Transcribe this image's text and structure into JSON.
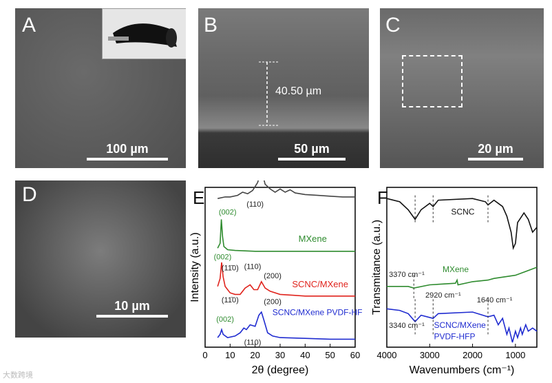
{
  "panels": {
    "A": {
      "label": "A",
      "scale": "100 µm"
    },
    "B": {
      "label": "B",
      "scale": "50 µm",
      "thickness": "40.50 µm"
    },
    "C": {
      "label": "C",
      "scale": "20 µm"
    },
    "D": {
      "label": "D",
      "scale": "10 µm"
    },
    "E": {
      "label": "E"
    },
    "F": {
      "label": "F"
    }
  },
  "footer": "大数跨境",
  "chart_data": [
    {
      "type": "line",
      "xlabel": "2θ (degree)",
      "ylabel": "Intensity (a.u.)",
      "xlim": [
        0,
        60
      ],
      "xticks": [
        0,
        10,
        20,
        30,
        40,
        50,
        60
      ],
      "series": [
        {
          "name": "SCNC",
          "color": "#444444",
          "points": [
            [
              5,
              0.93
            ],
            [
              8,
              0.94
            ],
            [
              10,
              0.94
            ],
            [
              13,
              0.95
            ],
            [
              15,
              0.97
            ],
            [
              17,
              0.96
            ],
            [
              19,
              0.98
            ],
            [
              21,
              1.03
            ],
            [
              22.5,
              1.11
            ],
            [
              24,
              1.02
            ],
            [
              26,
              0.99
            ],
            [
              28,
              0.97
            ],
            [
              30,
              0.99
            ],
            [
              32,
              0.97
            ],
            [
              34,
              0.985
            ],
            [
              36,
              0.965
            ],
            [
              40,
              0.955
            ],
            [
              45,
              0.95
            ],
            [
              50,
              0.945
            ],
            [
              55,
              0.94
            ],
            [
              60,
              0.94
            ]
          ]
        },
        {
          "name": "MXene",
          "color": "#2e8b2e",
          "points": [
            [
              5,
              0.62
            ],
            [
              6,
              0.65
            ],
            [
              6.5,
              0.8
            ],
            [
              7,
              0.69
            ],
            [
              7.5,
              0.63
            ],
            [
              9,
              0.61
            ],
            [
              12,
              0.605
            ],
            [
              20,
              0.6
            ],
            [
              30,
              0.6
            ],
            [
              40,
              0.6
            ],
            [
              50,
              0.6
            ],
            [
              60,
              0.6
            ]
          ]
        },
        {
          "name": "SCNC/MXene",
          "color": "#e0231c",
          "points": [
            [
              5,
              0.38
            ],
            [
              6,
              0.43
            ],
            [
              6.6,
              0.53
            ],
            [
              7.2,
              0.44
            ],
            [
              8,
              0.38
            ],
            [
              10,
              0.34
            ],
            [
              12,
              0.33
            ],
            [
              14,
              0.33
            ],
            [
              16,
              0.37
            ],
            [
              18,
              0.39
            ],
            [
              19.5,
              0.36
            ],
            [
              21,
              0.36
            ],
            [
              22.5,
              0.41
            ],
            [
              24,
              0.37
            ],
            [
              26,
              0.35
            ],
            [
              30,
              0.33
            ],
            [
              35,
              0.325
            ],
            [
              40,
              0.32
            ],
            [
              50,
              0.32
            ],
            [
              60,
              0.32
            ]
          ]
        },
        {
          "name": "SCNC/MXene PVDF-HFP",
          "color": "#1f2bd0",
          "points": [
            [
              5,
              0.06
            ],
            [
              6,
              0.08
            ],
            [
              6.6,
              0.11
            ],
            [
              7.2,
              0.08
            ],
            [
              9,
              0.06
            ],
            [
              12,
              0.07
            ],
            [
              14,
              0.09
            ],
            [
              15.5,
              0.12
            ],
            [
              16.5,
              0.11
            ],
            [
              18,
              0.14
            ],
            [
              20,
              0.13
            ],
            [
              21.5,
              0.2
            ],
            [
              22.5,
              0.22
            ],
            [
              23.5,
              0.17
            ],
            [
              25,
              0.09
            ],
            [
              27,
              0.07
            ],
            [
              30,
              0.06
            ],
            [
              40,
              0.055
            ],
            [
              50,
              0.05
            ],
            [
              60,
              0.05
            ]
          ]
        }
      ],
      "labels": {
        "l110b": "(11̄0)",
        "l200": "(200)",
        "l110": "(110)",
        "l002": "(002)"
      }
    },
    {
      "type": "line",
      "xlabel": "Wavenumbers (cm⁻¹)",
      "ylabel": "Transmitance (a.u.)",
      "xlim": [
        4000,
        500
      ],
      "xticks": [
        4000,
        3000,
        2000,
        1000
      ],
      "series": [
        {
          "name": "SCNC",
          "color": "#111111",
          "points": [
            [
              4000,
              0.93
            ],
            [
              3700,
              0.91
            ],
            [
              3500,
              0.86
            ],
            [
              3340,
              0.8
            ],
            [
              3200,
              0.86
            ],
            [
              3000,
              0.9
            ],
            [
              2920,
              0.88
            ],
            [
              2800,
              0.92
            ],
            [
              2000,
              0.93
            ],
            [
              1700,
              0.91
            ],
            [
              1640,
              0.89
            ],
            [
              1500,
              0.92
            ],
            [
              1400,
              0.9
            ],
            [
              1300,
              0.88
            ],
            [
              1200,
              0.82
            ],
            [
              1100,
              0.72
            ],
            [
              1050,
              0.62
            ],
            [
              1000,
              0.65
            ],
            [
              950,
              0.78
            ],
            [
              900,
              0.8
            ],
            [
              800,
              0.84
            ],
            [
              700,
              0.8
            ],
            [
              600,
              0.72
            ],
            [
              500,
              0.75
            ]
          ]
        },
        {
          "name": "MXene",
          "color": "#2e8b2e",
          "points": [
            [
              4000,
              0.38
            ],
            [
              3500,
              0.38
            ],
            [
              3370,
              0.37
            ],
            [
              3000,
              0.39
            ],
            [
              2400,
              0.4
            ],
            [
              2360,
              0.42
            ],
            [
              2340,
              0.39
            ],
            [
              2000,
              0.41
            ],
            [
              1640,
              0.42
            ],
            [
              1500,
              0.43
            ],
            [
              1000,
              0.45
            ],
            [
              800,
              0.47
            ],
            [
              500,
              0.5
            ]
          ]
        },
        {
          "name": "SCNC/MXene PVDF-HFP",
          "color": "#1f2bd0",
          "points": [
            [
              4000,
              0.24
            ],
            [
              3700,
              0.23
            ],
            [
              3500,
              0.21
            ],
            [
              3340,
              0.16
            ],
            [
              3200,
              0.2
            ],
            [
              2920,
              0.18
            ],
            [
              2800,
              0.21
            ],
            [
              2000,
              0.22
            ],
            [
              1640,
              0.19
            ],
            [
              1500,
              0.2
            ],
            [
              1400,
              0.14
            ],
            [
              1300,
              0.18
            ],
            [
              1200,
              0.08
            ],
            [
              1150,
              0.12
            ],
            [
              1070,
              0.03
            ],
            [
              1000,
              0.1
            ],
            [
              950,
              0.06
            ],
            [
              880,
              0.12
            ],
            [
              840,
              0.08
            ],
            [
              760,
              0.14
            ],
            [
              700,
              0.1
            ],
            [
              600,
              0.12
            ],
            [
              500,
              0.1
            ]
          ]
        }
      ],
      "annotations": {
        "a3370": "3370 cm⁻¹",
        "a2920": "2920 cm⁻¹",
        "a1640": "1640 cm⁻¹",
        "a3340": "3340 cm⁻¹",
        "mxene": "MXene",
        "scnc": "SCNC",
        "combo1": "SCNC/MXene",
        "combo2": "PVDF-HFP"
      }
    }
  ]
}
